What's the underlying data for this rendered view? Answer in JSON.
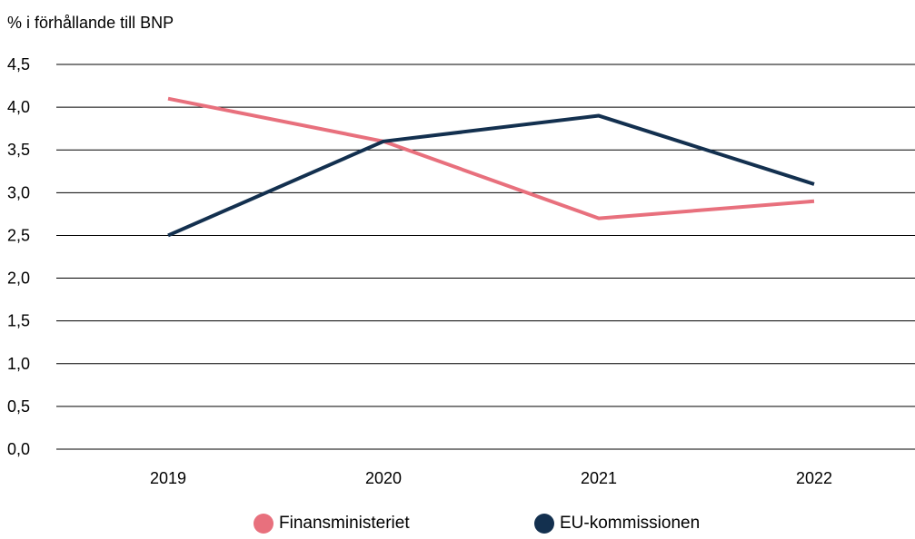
{
  "chart_data": {
    "type": "line",
    "title": "",
    "ylabel": "% i förhållande till BNP",
    "xlabel": "",
    "categories": [
      "2019",
      "2020",
      "2021",
      "2022"
    ],
    "y_ticks": [
      "0,0",
      "0,5",
      "1,0",
      "1,5",
      "2,0",
      "2,5",
      "3,0",
      "3,5",
      "4,0",
      "4,5"
    ],
    "ylim": [
      0,
      4.5
    ],
    "grid": "horizontal",
    "legend_position": "bottom",
    "series": [
      {
        "name": "Finansministeriet",
        "color": "#e8707d",
        "values": [
          4.1,
          3.6,
          2.7,
          2.9
        ]
      },
      {
        "name": "EU-kommissionen",
        "color": "#13304f",
        "values": [
          2.5,
          3.6,
          3.9,
          3.1
        ]
      }
    ]
  }
}
